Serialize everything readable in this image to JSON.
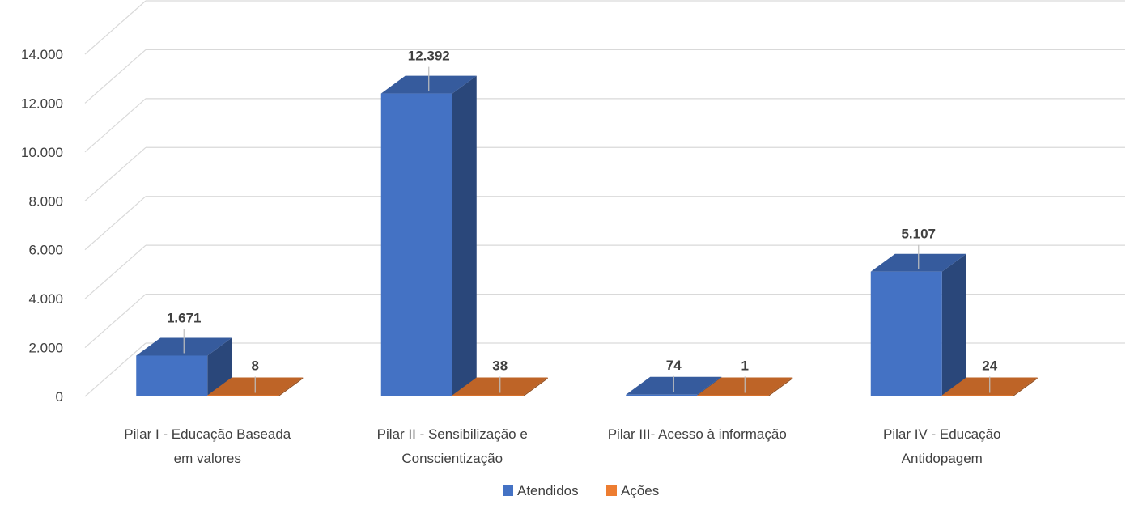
{
  "chart_data": {
    "type": "bar",
    "three_d": true,
    "categories": [
      [
        "Pilar I - Educação Baseada",
        "em valores"
      ],
      [
        "Pilar II - Sensibilização e",
        "Conscientização"
      ],
      [
        "Pilar III- Acesso à informação"
      ],
      [
        "Pilar IV - Educação",
        "Antidopagem"
      ]
    ],
    "series": [
      {
        "name": "Atendidos",
        "values": [
          1671,
          12392,
          74,
          5107
        ],
        "labels": [
          "1.671",
          "12.392",
          "74",
          "5.107"
        ],
        "color": "#4472c4"
      },
      {
        "name": "Ações",
        "values": [
          8,
          38,
          1,
          24
        ],
        "labels": [
          "8",
          "38",
          "1",
          "24"
        ],
        "color": "#ed7d31"
      }
    ],
    "y_ticks": [
      "0",
      "2.000",
      "4.000",
      "6.000",
      "8.000",
      "10.000",
      "12.000",
      "14.000"
    ],
    "ylim": [
      0,
      14000
    ],
    "grid": true,
    "legend_position": "bottom"
  }
}
